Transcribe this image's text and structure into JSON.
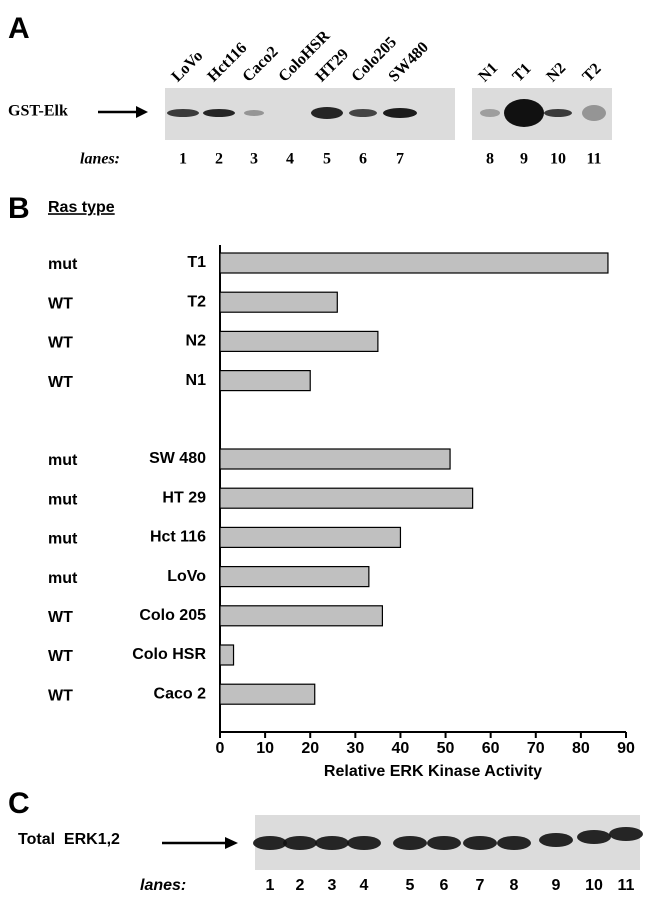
{
  "panel_a": {
    "label": "A",
    "probe": "GST-Elk",
    "lanes_label": "lanes:",
    "lane_names": [
      "LoVo",
      "Hct116",
      "Caco2",
      "ColoHSR",
      "HT29",
      "Colo205",
      "SW480",
      "N1",
      "T1",
      "N2",
      "T2"
    ],
    "lanes": [
      1,
      2,
      3,
      4,
      5,
      6,
      7,
      8,
      9,
      10,
      11
    ]
  },
  "panel_b": {
    "label": "B",
    "ras_header": "Ras type",
    "ras_types": [
      "mut",
      "WT",
      "WT",
      "WT",
      null,
      "mut",
      "mut",
      "mut",
      "mut",
      "WT",
      "WT",
      "WT"
    ]
  },
  "chart_data": {
    "type": "bar",
    "orientation": "horizontal",
    "xlabel": "Relative ERK Kinase Activity",
    "categories": [
      "T1",
      "T2",
      "N2",
      "N1",
      null,
      "SW 480",
      "HT 29",
      "Hct 116",
      "LoVo",
      "Colo 205",
      "Colo HSR",
      "Caco 2"
    ],
    "values": [
      86,
      26,
      35,
      20,
      null,
      51,
      56,
      40,
      33,
      36,
      3,
      21
    ],
    "color": "#c0c0c0",
    "xlim": [
      0,
      90
    ],
    "xticks": [
      0,
      10,
      20,
      30,
      40,
      50,
      60,
      70,
      80,
      90
    ],
    "grid": false
  },
  "panel_c": {
    "label": "C",
    "probe": "Total  ERK1,2",
    "lanes_label": "lanes:",
    "lanes": [
      1,
      2,
      3,
      4,
      5,
      6,
      7,
      8,
      9,
      10,
      11
    ]
  }
}
